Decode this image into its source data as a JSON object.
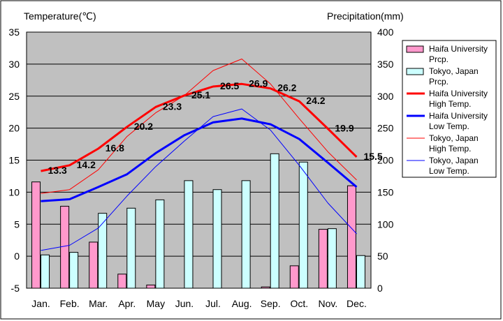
{
  "chart_data": {
    "type": "bar+line",
    "left_axis_label": "Temperature(℃)",
    "right_axis_label": "Precipitation(mm)",
    "y_left": {
      "min": -5,
      "max": 35,
      "ticks": [
        "35",
        "30",
        "25",
        "20",
        "15",
        "10",
        "5",
        "0",
        "-5"
      ]
    },
    "y_right": {
      "min": 0,
      "max": 400,
      "ticks": [
        "400",
        "350",
        "300",
        "250",
        "200",
        "150",
        "100",
        "50",
        "0"
      ]
    },
    "categories": [
      "Jan.",
      "Feb.",
      "Mar.",
      "Apr.",
      "May",
      "Jun.",
      "Jul.",
      "Aug.",
      "Sep.",
      "Oct.",
      "Nov.",
      "Dec."
    ],
    "grid": true,
    "legend_position": "right",
    "bar_series": [
      {
        "legend": "Haifa University Prcp.",
        "legend_lines": [
          "Haifa University",
          "Prcp."
        ],
        "color": "#ff99cc",
        "values": [
          166,
          128,
          72,
          22,
          5,
          0,
          0,
          0,
          2,
          35,
          92,
          160
        ]
      },
      {
        "legend": "Tokyo, Japan Prcp.",
        "legend_lines": [
          "Tokyo, Japan",
          "Prcp."
        ],
        "color": "#ccffff",
        "values": [
          52,
          56,
          117,
          125,
          138,
          168,
          154,
          168,
          210,
          197,
          93,
          51
        ]
      }
    ],
    "line_series": [
      {
        "legend": "Haifa University High Temp.",
        "legend_lines": [
          "Haifa University",
          "High Temp."
        ],
        "color": "#ff0000",
        "width": 3,
        "values": [
          13.3,
          14.2,
          16.8,
          20.2,
          23.3,
          25.1,
          26.5,
          26.9,
          26.2,
          24.2,
          19.9,
          15.5
        ],
        "labels": [
          "13.3",
          "14.2",
          "16.8",
          "20.2",
          "23.3",
          "25.1",
          "26.5",
          "26.9",
          "26.2",
          "24.2",
          "19.9",
          "15.5"
        ]
      },
      {
        "legend": "Haifa University Low Temp.",
        "legend_lines": [
          "Haifa University",
          "Low Temp."
        ],
        "color": "#0000ff",
        "width": 3,
        "values": [
          8.6,
          8.9,
          10.8,
          12.8,
          16.1,
          18.9,
          20.9,
          21.5,
          20.6,
          18.3,
          14.6,
          10.8
        ]
      },
      {
        "legend": "Tokyo, Japan High Temp.",
        "legend_lines": [
          "Tokyo, Japan",
          "High Temp."
        ],
        "color": "#ff0000",
        "width": 1,
        "values": [
          9.8,
          10.4,
          13.5,
          18.7,
          22.4,
          25.1,
          29.0,
          30.8,
          26.9,
          21.5,
          16.3,
          11.9
        ]
      },
      {
        "legend": "Tokyo, Japan Low Temp.",
        "legend_lines": [
          "Tokyo, Japan",
          "Low Temp."
        ],
        "color": "#0000ff",
        "width": 1,
        "values": [
          0.9,
          1.7,
          4.4,
          9.4,
          14.0,
          18.0,
          21.8,
          23.0,
          19.7,
          14.2,
          8.3,
          3.5
        ]
      }
    ]
  }
}
